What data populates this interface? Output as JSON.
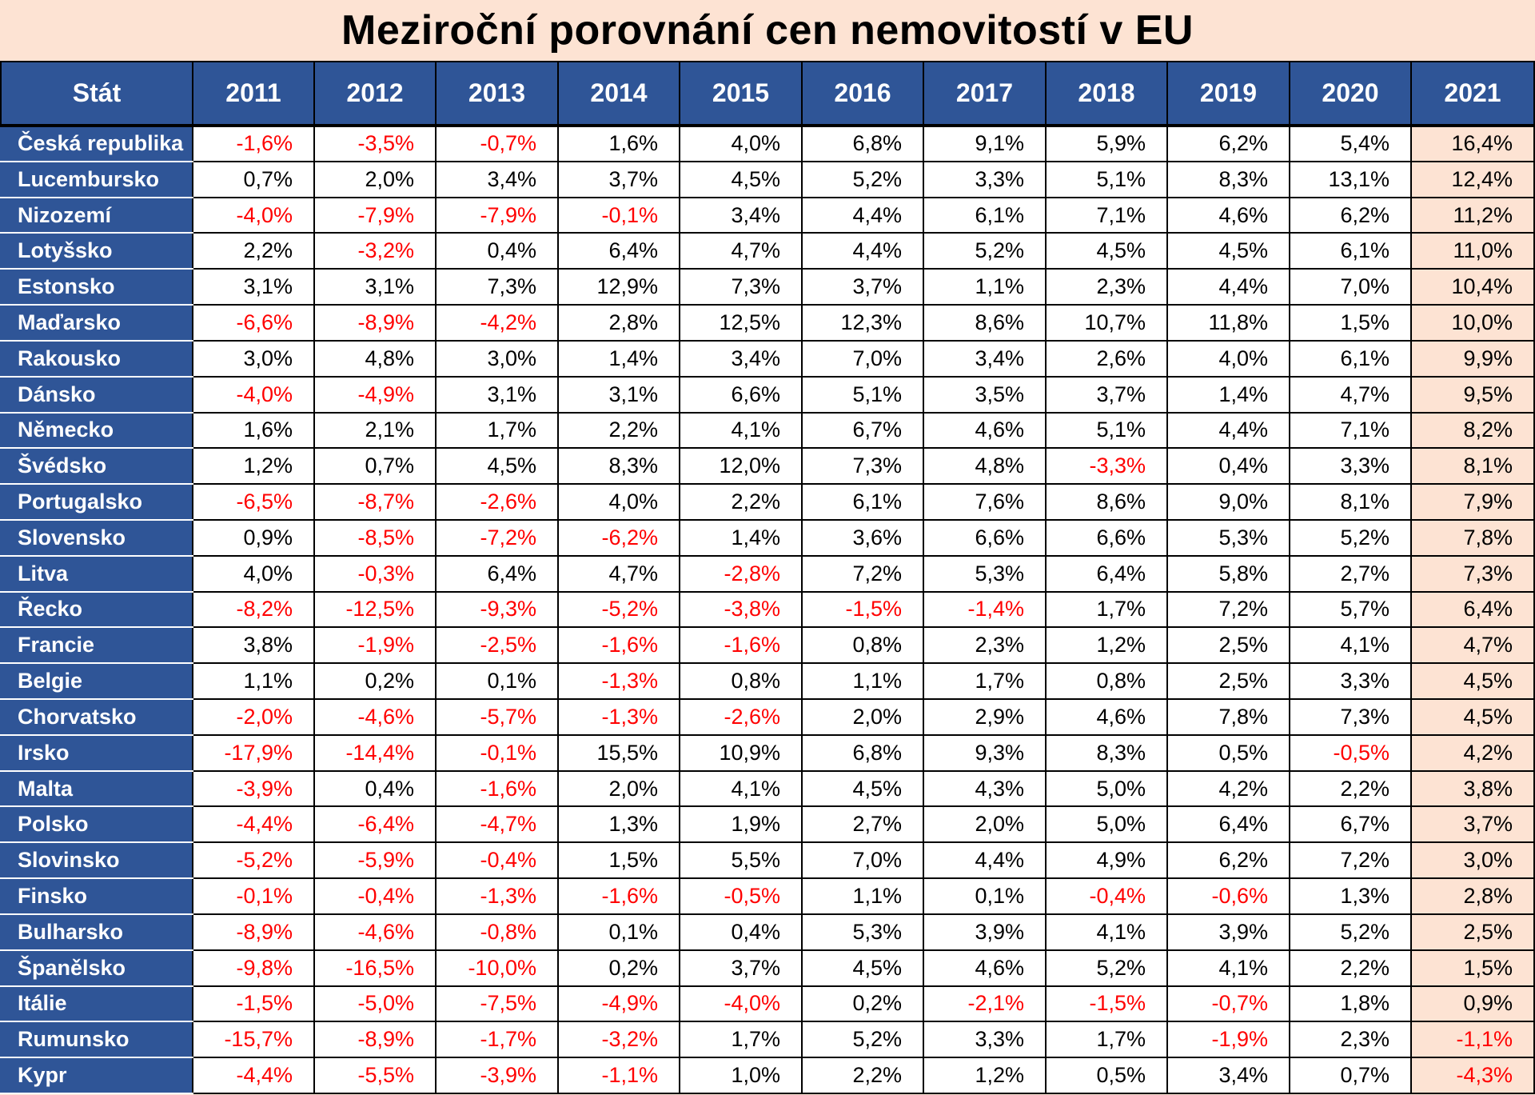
{
  "title": "Meziroční porovnání cen nemovitostí  v EU",
  "colors": {
    "header_bg": "#2f5597",
    "header_text": "#ffffff",
    "negative_text": "#ff0000",
    "positive_text": "#000000",
    "highlight_bg": "#fde3d3"
  },
  "chart_data": {
    "type": "table",
    "title": "Meziroční porovnání cen nemovitostí  v EU",
    "columns": [
      "Stát",
      "2011",
      "2012",
      "2013",
      "2014",
      "2015",
      "2016",
      "2017",
      "2018",
      "2019",
      "2020",
      "2021"
    ],
    "rows": [
      {
        "country": "Česká republika",
        "values": [
          "-1,6%",
          "-3,5%",
          "-0,7%",
          "1,6%",
          "4,0%",
          "6,8%",
          "9,1%",
          "5,9%",
          "6,2%",
          "5,4%",
          "16,4%"
        ]
      },
      {
        "country": "Lucembursko",
        "values": [
          "0,7%",
          "2,0%",
          "3,4%",
          "3,7%",
          "4,5%",
          "5,2%",
          "3,3%",
          "5,1%",
          "8,3%",
          "13,1%",
          "12,4%"
        ]
      },
      {
        "country": "Nizozemí",
        "values": [
          "-4,0%",
          "-7,9%",
          "-7,9%",
          "-0,1%",
          "3,4%",
          "4,4%",
          "6,1%",
          "7,1%",
          "4,6%",
          "6,2%",
          "11,2%"
        ]
      },
      {
        "country": "Lotyšsko",
        "values": [
          "2,2%",
          "-3,2%",
          "0,4%",
          "6,4%",
          "4,7%",
          "4,4%",
          "5,2%",
          "4,5%",
          "4,5%",
          "6,1%",
          "11,0%"
        ]
      },
      {
        "country": "Estonsko",
        "values": [
          "3,1%",
          "3,1%",
          "7,3%",
          "12,9%",
          "7,3%",
          "3,7%",
          "1,1%",
          "2,3%",
          "4,4%",
          "7,0%",
          "10,4%"
        ]
      },
      {
        "country": "Maďarsko",
        "values": [
          "-6,6%",
          "-8,9%",
          "-4,2%",
          "2,8%",
          "12,5%",
          "12,3%",
          "8,6%",
          "10,7%",
          "11,8%",
          "1,5%",
          "10,0%"
        ]
      },
      {
        "country": "Rakousko",
        "values": [
          "3,0%",
          "4,8%",
          "3,0%",
          "1,4%",
          "3,4%",
          "7,0%",
          "3,4%",
          "2,6%",
          "4,0%",
          "6,1%",
          "9,9%"
        ]
      },
      {
        "country": "Dánsko",
        "values": [
          "-4,0%",
          "-4,9%",
          "3,1%",
          "3,1%",
          "6,6%",
          "5,1%",
          "3,5%",
          "3,7%",
          "1,4%",
          "4,7%",
          "9,5%"
        ]
      },
      {
        "country": "Německo",
        "values": [
          "1,6%",
          "2,1%",
          "1,7%",
          "2,2%",
          "4,1%",
          "6,7%",
          "4,6%",
          "5,1%",
          "4,4%",
          "7,1%",
          "8,2%"
        ]
      },
      {
        "country": "Švédsko",
        "values": [
          "1,2%",
          "0,7%",
          "4,5%",
          "8,3%",
          "12,0%",
          "7,3%",
          "4,8%",
          "-3,3%",
          "0,4%",
          "3,3%",
          "8,1%"
        ]
      },
      {
        "country": "Portugalsko",
        "values": [
          "-6,5%",
          "-8,7%",
          "-2,6%",
          "4,0%",
          "2,2%",
          "6,1%",
          "7,6%",
          "8,6%",
          "9,0%",
          "8,1%",
          "7,9%"
        ]
      },
      {
        "country": "Slovensko",
        "values": [
          "0,9%",
          "-8,5%",
          "-7,2%",
          "-6,2%",
          "1,4%",
          "3,6%",
          "6,6%",
          "6,6%",
          "5,3%",
          "5,2%",
          "7,8%"
        ]
      },
      {
        "country": "Litva",
        "values": [
          "4,0%",
          "-0,3%",
          "6,4%",
          "4,7%",
          "-2,8%",
          "7,2%",
          "5,3%",
          "6,4%",
          "5,8%",
          "2,7%",
          "7,3%"
        ]
      },
      {
        "country": "Řecko",
        "values": [
          "-8,2%",
          "-12,5%",
          "-9,3%",
          "-5,2%",
          "-3,8%",
          "-1,5%",
          "-1,4%",
          "1,7%",
          "7,2%",
          "5,7%",
          "6,4%"
        ]
      },
      {
        "country": "Francie",
        "values": [
          "3,8%",
          "-1,9%",
          "-2,5%",
          "-1,6%",
          "-1,6%",
          "0,8%",
          "2,3%",
          "1,2%",
          "2,5%",
          "4,1%",
          "4,7%"
        ]
      },
      {
        "country": "Belgie",
        "values": [
          "1,1%",
          "0,2%",
          "0,1%",
          "-1,3%",
          "0,8%",
          "1,1%",
          "1,7%",
          "0,8%",
          "2,5%",
          "3,3%",
          "4,5%"
        ]
      },
      {
        "country": "Chorvatsko",
        "values": [
          "-2,0%",
          "-4,6%",
          "-5,7%",
          "-1,3%",
          "-2,6%",
          "2,0%",
          "2,9%",
          "4,6%",
          "7,8%",
          "7,3%",
          "4,5%"
        ]
      },
      {
        "country": "Irsko",
        "values": [
          "-17,9%",
          "-14,4%",
          "-0,1%",
          "15,5%",
          "10,9%",
          "6,8%",
          "9,3%",
          "8,3%",
          "0,5%",
          "-0,5%",
          "4,2%"
        ]
      },
      {
        "country": "Malta",
        "values": [
          "-3,9%",
          "0,4%",
          "-1,6%",
          "2,0%",
          "4,1%",
          "4,5%",
          "4,3%",
          "5,0%",
          "4,2%",
          "2,2%",
          "3,8%"
        ]
      },
      {
        "country": "Polsko",
        "values": [
          "-4,4%",
          "-6,4%",
          "-4,7%",
          "1,3%",
          "1,9%",
          "2,7%",
          "2,0%",
          "5,0%",
          "6,4%",
          "6,7%",
          "3,7%"
        ]
      },
      {
        "country": "Slovinsko",
        "values": [
          "-5,2%",
          "-5,9%",
          "-0,4%",
          "1,5%",
          "5,5%",
          "7,0%",
          "4,4%",
          "4,9%",
          "6,2%",
          "7,2%",
          "3,0%"
        ]
      },
      {
        "country": "Finsko",
        "values": [
          "-0,1%",
          "-0,4%",
          "-1,3%",
          "-1,6%",
          "-0,5%",
          "1,1%",
          "0,1%",
          "-0,4%",
          "-0,6%",
          "1,3%",
          "2,8%"
        ]
      },
      {
        "country": "Bulharsko",
        "values": [
          "-8,9%",
          "-4,6%",
          "-0,8%",
          "0,1%",
          "0,4%",
          "5,3%",
          "3,9%",
          "4,1%",
          "3,9%",
          "5,2%",
          "2,5%"
        ]
      },
      {
        "country": "Španělsko",
        "values": [
          "-9,8%",
          "-16,5%",
          "-10,0%",
          "0,2%",
          "3,7%",
          "4,5%",
          "4,6%",
          "5,2%",
          "4,1%",
          "2,2%",
          "1,5%"
        ]
      },
      {
        "country": "Itálie",
        "values": [
          "-1,5%",
          "-5,0%",
          "-7,5%",
          "-4,9%",
          "-4,0%",
          "0,2%",
          "-2,1%",
          "-1,5%",
          "-0,7%",
          "1,8%",
          "0,9%"
        ]
      },
      {
        "country": "Rumunsko",
        "values": [
          "-15,7%",
          "-8,9%",
          "-1,7%",
          "-3,2%",
          "1,7%",
          "5,2%",
          "3,3%",
          "1,7%",
          "-1,9%",
          "2,3%",
          "-1,1%"
        ]
      },
      {
        "country": "Kypr",
        "values": [
          "-4,4%",
          "-5,5%",
          "-3,9%",
          "-1,1%",
          "1,0%",
          "2,2%",
          "1,2%",
          "0,5%",
          "3,4%",
          "0,7%",
          "-4,3%"
        ]
      }
    ]
  }
}
